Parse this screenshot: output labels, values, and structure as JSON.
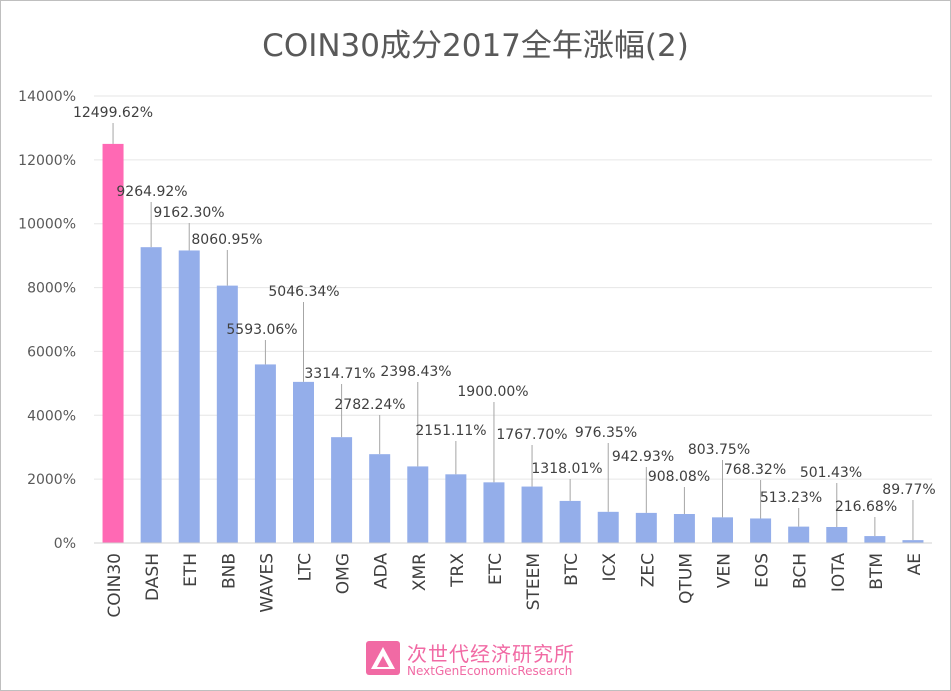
{
  "chart_data": {
    "type": "bar",
    "title": "COIN30成分2017全年涨幅(2)",
    "xlabel": "",
    "ylabel": "",
    "categories": [
      "COIN30",
      "DASH",
      "ETH",
      "BNB",
      "WAVES",
      "LTC",
      "OMG",
      "ADA",
      "XMR",
      "TRX",
      "ETC",
      "STEEM",
      "BTC",
      "ICX",
      "ZEC",
      "QTUM",
      "VEN",
      "EOS",
      "BCH",
      "IOTA",
      "BTM",
      "AE"
    ],
    "values": [
      12499.62,
      9264.92,
      9162.3,
      8060.95,
      5593.06,
      5046.34,
      3314.71,
      2782.24,
      2398.43,
      2151.11,
      1900.0,
      1767.7,
      1318.01,
      976.35,
      942.93,
      908.08,
      803.75,
      768.32,
      513.23,
      501.43,
      216.68,
      89.77
    ],
    "data_labels": [
      "12499.62%",
      "9264.92%",
      "9162.30%",
      "8060.95%",
      "5593.06%",
      "5046.34%",
      "3314.71%",
      "2782.24%",
      "2398.43%",
      "2151.11%",
      "1900.00%",
      "1767.70%",
      "1318.01%",
      "976.35%",
      "942.93%",
      "908.08%",
      "803.75%",
      "768.32%",
      "513.23%",
      "501.43%",
      "216.68%",
      "89.77%"
    ],
    "ylim": [
      0,
      14000
    ],
    "y_ticks": [
      0,
      2000,
      4000,
      6000,
      8000,
      10000,
      12000,
      14000
    ],
    "y_tick_labels": [
      "0%",
      "2000%",
      "4000%",
      "6000%",
      "8000%",
      "10000%",
      "12000%",
      "14000%"
    ],
    "grid": true,
    "legend": "none",
    "colors": {
      "highlight": "#ff69b4",
      "bar": "#94aeea",
      "grid": "#e6e6e6",
      "text": "#404040",
      "leader": "#a6a6a6"
    }
  },
  "watermark": {
    "text_cn": "次世代经济研究所",
    "text_en": "NextGenEconomicResearch",
    "icon": "pink-triangle-logo-icon",
    "color": "#f16aa4"
  }
}
